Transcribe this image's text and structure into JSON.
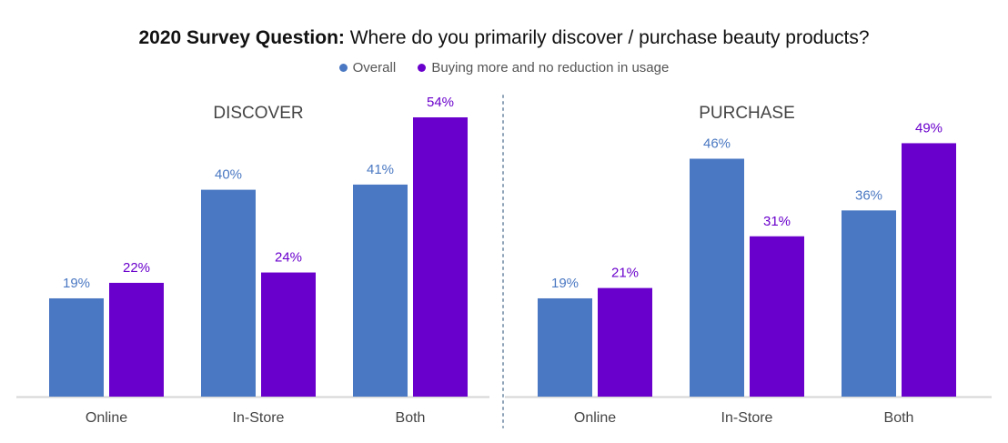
{
  "title": {
    "bold": "2020 Survey Question:",
    "rest": " Where do you primarily discover / purchase beauty products?"
  },
  "legend": [
    {
      "label": "Overall",
      "color": "#4a78c2"
    },
    {
      "label": "Buying more and no reduction in usage",
      "color": "#6a00cc"
    }
  ],
  "chart_data": [
    {
      "type": "bar",
      "title": "DISCOVER",
      "categories": [
        "Online",
        "In-Store",
        "Both"
      ],
      "series": [
        {
          "name": "Overall",
          "values": [
            19,
            40,
            41
          ],
          "labels": [
            "19%",
            "40%",
            "41%"
          ]
        },
        {
          "name": "Buying more and no reduction in usage",
          "values": [
            22,
            24,
            54
          ],
          "labels": [
            "22%",
            "24%",
            "54%"
          ]
        }
      ],
      "ylim": [
        0,
        54
      ],
      "grid": false
    },
    {
      "type": "bar",
      "title": "PURCHASE",
      "categories": [
        "Online",
        "In-Store",
        "Both"
      ],
      "series": [
        {
          "name": "Overall",
          "values": [
            19,
            46,
            36
          ],
          "labels": [
            "19%",
            "46%",
            "36%"
          ]
        },
        {
          "name": "Buying more and no reduction in usage",
          "values": [
            21,
            31,
            49
          ],
          "labels": [
            "21%",
            "31%",
            "49%"
          ]
        }
      ],
      "ylim": [
        0,
        54
      ],
      "grid": false
    }
  ]
}
